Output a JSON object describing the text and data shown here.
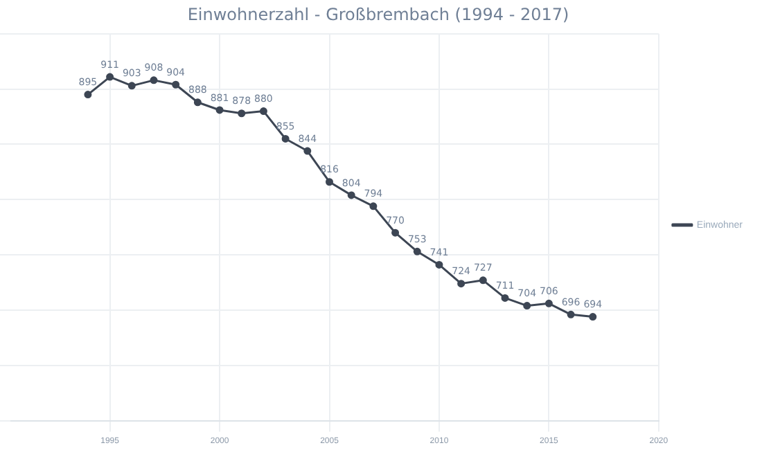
{
  "chart_data": {
    "type": "line",
    "title": "Einwohnerzahl - Großbrembach (1994 - 2017)",
    "x": [
      1994,
      1995,
      1996,
      1997,
      1998,
      1999,
      2000,
      2001,
      2002,
      2003,
      2004,
      2005,
      2006,
      2007,
      2008,
      2009,
      2010,
      2011,
      2012,
      2013,
      2014,
      2015,
      2016,
      2017
    ],
    "series": [
      {
        "name": "Einwohner",
        "color": "#3d4654",
        "values": [
          895,
          911,
          903,
          908,
          904,
          888,
          881,
          878,
          880,
          855,
          844,
          816,
          804,
          794,
          770,
          753,
          741,
          724,
          727,
          711,
          704,
          706,
          696,
          694
        ]
      }
    ],
    "xlim": [
      1990.5,
      2020
    ],
    "xticks": [
      1995,
      2000,
      2005,
      2010,
      2015,
      2020
    ],
    "ylim": [
      600,
      950
    ],
    "yticks": [
      {
        "value": 600,
        "label": null
      },
      {
        "value": 650,
        "label": null
      },
      {
        "value": 700,
        "label": null
      },
      {
        "value": 750,
        "label": null
      },
      {
        "value": 800,
        "label": null
      },
      {
        "value": 850,
        "label": null
      },
      {
        "value": 900,
        "label": null
      },
      {
        "value": 950,
        "label": null
      }
    ],
    "tick_labels": "x",
    "grid": true,
    "legend": "right",
    "marker": "circle",
    "line_style": "solid",
    "data_labels": true
  }
}
